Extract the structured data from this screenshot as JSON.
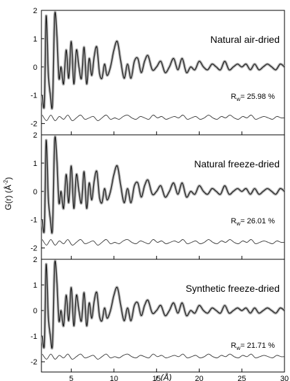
{
  "chart_data": [
    {
      "type": "line",
      "label": "Natural air-dried",
      "rw_label": "R",
      "rw_sub": "w",
      "rw_value": "= 25.98 %",
      "xlim": [
        1.5,
        30
      ],
      "ylim": [
        -2.4,
        2.0
      ],
      "yticks": [
        "-2",
        "-1",
        "0",
        "1",
        "2"
      ],
      "diff_offset": -1.8,
      "series": [
        {
          "x": [
            1.6,
            1.85,
            2.05,
            2.3,
            2.55,
            2.8,
            3.05,
            3.3,
            3.55,
            3.8,
            4.1,
            4.4,
            4.7,
            5.0,
            5.3,
            5.6,
            5.9,
            6.2,
            6.5,
            6.8,
            7.1,
            7.4,
            7.7,
            8.0,
            8.3,
            8.6,
            8.9,
            9.2,
            9.6,
            10.0,
            10.4,
            10.8,
            11.2,
            11.6,
            12.0,
            12.4,
            12.8,
            13.2,
            13.6,
            14.0,
            14.5,
            15.0,
            15.5,
            16.0,
            16.5,
            17.0,
            17.5,
            18.0,
            18.5,
            19.0,
            19.5,
            20.0,
            20.5,
            21.0,
            21.5,
            22.0,
            22.5,
            23.0,
            23.5,
            24.0,
            24.5,
            25.0,
            25.5,
            26.0,
            26.5,
            27.0,
            27.5,
            28.0,
            28.5,
            29.0,
            29.5,
            30.0
          ],
          "y": [
            -1.0,
            -1.3,
            1.8,
            -0.2,
            -1.0,
            -1.3,
            1.8,
            1.2,
            -0.4,
            0.0,
            -0.6,
            0.6,
            -0.4,
            0.9,
            -0.6,
            0.6,
            0.0,
            -0.4,
            0.7,
            -0.6,
            0.3,
            -0.3,
            0.4,
            0.7,
            -0.2,
            -0.4,
            0.1,
            -0.3,
            0.0,
            0.6,
            0.9,
            0.2,
            -0.4,
            0.1,
            -0.4,
            0.2,
            0.3,
            -0.2,
            0.2,
            0.4,
            -0.1,
            0.0,
            0.2,
            -0.2,
            0.0,
            0.3,
            -0.1,
            0.3,
            -0.2,
            0.0,
            -0.1,
            0.2,
            0.0,
            -0.1,
            0.1,
            0.0,
            -0.1,
            0.2,
            -0.1,
            0.0,
            0.1,
            0.0,
            0.1,
            -0.1,
            0.1,
            -0.1,
            0.0,
            0.1,
            0.0,
            -0.1,
            0.1,
            0.0
          ]
        },
        {
          "x": [
            1.6,
            2.1,
            2.6,
            3.1,
            3.6,
            4.1,
            4.6,
            5.1,
            5.6,
            6.1,
            6.6,
            7.1,
            7.6,
            8.1,
            8.6,
            9.1,
            9.6,
            10.1,
            10.6,
            11.1,
            11.6,
            12.1,
            12.6,
            13.1,
            13.6,
            14.1,
            14.6,
            15.1,
            15.6,
            16.1,
            16.6,
            17.1,
            17.6,
            18.1,
            18.6,
            19.1,
            19.6,
            20.1,
            20.6,
            21.1,
            21.6,
            22.1,
            22.6,
            23.1,
            23.6,
            24.1,
            24.6,
            25.1,
            25.6,
            26.1,
            26.6,
            27.1,
            27.6,
            28.1,
            28.6,
            29.1,
            29.6,
            30.0
          ],
          "y": [
            -1.7,
            -1.9,
            -1.7,
            -1.9,
            -1.75,
            -1.85,
            -1.7,
            -1.9,
            -1.8,
            -1.7,
            -1.85,
            -1.8,
            -1.75,
            -1.9,
            -1.8,
            -1.7,
            -1.85,
            -1.8,
            -1.85,
            -1.75,
            -1.7,
            -1.8,
            -1.85,
            -1.75,
            -1.8,
            -1.85,
            -1.7,
            -1.8,
            -1.75,
            -1.85,
            -1.8,
            -1.75,
            -1.8,
            -1.7,
            -1.85,
            -1.8,
            -1.75,
            -1.85,
            -1.8,
            -1.7,
            -1.8,
            -1.85,
            -1.75,
            -1.8,
            -1.7,
            -1.8,
            -1.85,
            -1.75,
            -1.8,
            -1.7,
            -1.85,
            -1.8,
            -1.75,
            -1.8,
            -1.85,
            -1.75,
            -1.8,
            -1.8
          ]
        }
      ]
    },
    {
      "type": "line",
      "label": "Natural freeze-dried",
      "rw_label": "R",
      "rw_sub": "w",
      "rw_value": "= 26.01 %",
      "xlim": [
        1.5,
        30
      ],
      "ylim": [
        -2.4,
        2.0
      ],
      "yticks": [
        "-2",
        "-1",
        "0",
        "1",
        "2"
      ],
      "diff_offset": -1.8,
      "series": [
        {
          "x": [
            1.6,
            1.85,
            2.05,
            2.3,
            2.55,
            2.8,
            3.05,
            3.3,
            3.55,
            3.8,
            4.1,
            4.4,
            4.7,
            5.0,
            5.3,
            5.6,
            5.9,
            6.2,
            6.5,
            6.8,
            7.1,
            7.4,
            7.7,
            8.0,
            8.3,
            8.6,
            8.9,
            9.2,
            9.6,
            10.0,
            10.4,
            10.8,
            11.2,
            11.6,
            12.0,
            12.4,
            12.8,
            13.2,
            13.6,
            14.0,
            14.5,
            15.0,
            15.5,
            16.0,
            16.5,
            17.0,
            17.5,
            18.0,
            18.5,
            19.0,
            19.5,
            20.0,
            20.5,
            21.0,
            21.5,
            22.0,
            22.5,
            23.0,
            23.5,
            24.0,
            24.5,
            25.0,
            25.5,
            26.0,
            26.5,
            27.0,
            27.5,
            28.0,
            28.5,
            29.0,
            29.5,
            30.0
          ],
          "y": [
            -1.0,
            -1.3,
            1.8,
            -0.2,
            -1.0,
            -1.3,
            1.8,
            1.2,
            -0.4,
            0.0,
            -0.6,
            0.6,
            -0.4,
            0.9,
            -0.6,
            0.6,
            0.0,
            -0.4,
            0.7,
            -0.6,
            0.3,
            -0.3,
            0.4,
            0.7,
            -0.2,
            -0.4,
            0.1,
            -0.3,
            0.0,
            0.6,
            0.9,
            0.2,
            -0.4,
            0.1,
            -0.4,
            0.2,
            0.3,
            -0.2,
            0.2,
            0.4,
            -0.1,
            0.0,
            0.2,
            -0.2,
            0.0,
            0.3,
            -0.1,
            0.3,
            -0.2,
            0.0,
            -0.1,
            0.2,
            0.0,
            -0.1,
            0.1,
            0.0,
            -0.1,
            0.2,
            -0.1,
            0.0,
            0.1,
            0.0,
            0.1,
            -0.1,
            0.1,
            -0.1,
            0.0,
            0.1,
            0.0,
            -0.1,
            0.1,
            0.0
          ]
        },
        {
          "x": [
            1.6,
            2.1,
            2.6,
            3.1,
            3.6,
            4.1,
            4.6,
            5.1,
            5.6,
            6.1,
            6.6,
            7.1,
            7.6,
            8.1,
            8.6,
            9.1,
            9.6,
            10.1,
            10.6,
            11.1,
            11.6,
            12.1,
            12.6,
            13.1,
            13.6,
            14.1,
            14.6,
            15.1,
            15.6,
            16.1,
            16.6,
            17.1,
            17.6,
            18.1,
            18.6,
            19.1,
            19.6,
            20.1,
            20.6,
            21.1,
            21.6,
            22.1,
            22.6,
            23.1,
            23.6,
            24.1,
            24.6,
            25.1,
            25.6,
            26.1,
            26.6,
            27.1,
            27.6,
            28.1,
            28.6,
            29.1,
            29.6,
            30.0
          ],
          "y": [
            -1.7,
            -1.9,
            -1.7,
            -1.9,
            -1.75,
            -1.85,
            -1.7,
            -1.9,
            -1.8,
            -1.7,
            -1.85,
            -1.8,
            -1.75,
            -1.9,
            -1.8,
            -1.7,
            -1.85,
            -1.8,
            -1.85,
            -1.75,
            -1.7,
            -1.8,
            -1.85,
            -1.75,
            -1.8,
            -1.85,
            -1.7,
            -1.8,
            -1.75,
            -1.85,
            -1.8,
            -1.75,
            -1.8,
            -1.7,
            -1.85,
            -1.8,
            -1.75,
            -1.85,
            -1.8,
            -1.7,
            -1.8,
            -1.85,
            -1.75,
            -1.8,
            -1.7,
            -1.8,
            -1.85,
            -1.75,
            -1.8,
            -1.7,
            -1.85,
            -1.8,
            -1.75,
            -1.8,
            -1.85,
            -1.75,
            -1.8,
            -1.8
          ]
        }
      ]
    },
    {
      "type": "line",
      "label": "Synthetic freeze-dried",
      "rw_label": "R",
      "rw_sub": "w",
      "rw_value": "= 21.71 %",
      "xlim": [
        1.5,
        30
      ],
      "ylim": [
        -2.4,
        2.0
      ],
      "yticks": [
        "-2",
        "-1",
        "0",
        "1",
        "2"
      ],
      "xticks": [
        "5",
        "10",
        "15",
        "20",
        "25",
        "30"
      ],
      "diff_offset": -1.8,
      "series": [
        {
          "x": [
            1.6,
            1.85,
            2.05,
            2.3,
            2.55,
            2.8,
            3.05,
            3.3,
            3.55,
            3.8,
            4.1,
            4.4,
            4.7,
            5.0,
            5.3,
            5.6,
            5.9,
            6.2,
            6.5,
            6.8,
            7.1,
            7.4,
            7.7,
            8.0,
            8.3,
            8.6,
            8.9,
            9.2,
            9.6,
            10.0,
            10.4,
            10.8,
            11.2,
            11.6,
            12.0,
            12.4,
            12.8,
            13.2,
            13.6,
            14.0,
            14.5,
            15.0,
            15.5,
            16.0,
            16.5,
            17.0,
            17.5,
            18.0,
            18.5,
            19.0,
            19.5,
            20.0,
            20.5,
            21.0,
            21.5,
            22.0,
            22.5,
            23.0,
            23.5,
            24.0,
            24.5,
            25.0,
            25.5,
            26.0,
            26.5,
            27.0,
            27.5,
            28.0,
            28.5,
            29.0,
            29.5,
            30.0
          ],
          "y": [
            -1.0,
            -1.3,
            1.8,
            -0.2,
            -1.0,
            -1.3,
            1.8,
            1.2,
            -0.4,
            0.0,
            -0.6,
            0.6,
            -0.4,
            0.9,
            -0.6,
            0.6,
            0.0,
            -0.4,
            0.7,
            -0.6,
            0.3,
            -0.3,
            0.4,
            0.7,
            -0.2,
            -0.4,
            0.1,
            -0.3,
            0.0,
            0.6,
            0.9,
            0.2,
            -0.4,
            0.1,
            -0.4,
            0.2,
            0.3,
            -0.2,
            0.2,
            0.4,
            -0.1,
            0.0,
            0.2,
            -0.2,
            0.0,
            0.3,
            -0.1,
            0.3,
            -0.2,
            0.0,
            -0.1,
            0.2,
            0.0,
            -0.1,
            0.1,
            0.0,
            -0.1,
            0.2,
            -0.1,
            0.0,
            0.1,
            0.0,
            0.1,
            -0.1,
            0.1,
            -0.1,
            0.0,
            0.1,
            0.0,
            -0.1,
            0.1,
            0.0
          ]
        },
        {
          "x": [
            1.6,
            2.1,
            2.6,
            3.1,
            3.6,
            4.1,
            4.6,
            5.1,
            5.6,
            6.1,
            6.6,
            7.1,
            7.6,
            8.1,
            8.6,
            9.1,
            9.6,
            10.1,
            10.6,
            11.1,
            11.6,
            12.1,
            12.6,
            13.1,
            13.6,
            14.1,
            14.6,
            15.1,
            15.6,
            16.1,
            16.6,
            17.1,
            17.6,
            18.1,
            18.6,
            19.1,
            19.6,
            20.1,
            20.6,
            21.1,
            21.6,
            22.1,
            22.6,
            23.1,
            23.6,
            24.1,
            24.6,
            25.1,
            25.6,
            26.1,
            26.6,
            27.1,
            27.6,
            28.1,
            28.6,
            29.1,
            29.6,
            30.0
          ],
          "y": [
            -1.7,
            -1.9,
            -1.7,
            -1.9,
            -1.75,
            -1.85,
            -1.7,
            -1.9,
            -1.8,
            -1.7,
            -1.85,
            -1.8,
            -1.75,
            -1.9,
            -1.8,
            -1.7,
            -1.85,
            -1.8,
            -1.85,
            -1.75,
            -1.7,
            -1.8,
            -1.85,
            -1.75,
            -1.8,
            -1.85,
            -1.7,
            -1.8,
            -1.75,
            -1.85,
            -1.8,
            -1.75,
            -1.8,
            -1.7,
            -1.85,
            -1.8,
            -1.75,
            -1.85,
            -1.8,
            -1.7,
            -1.8,
            -1.85,
            -1.75,
            -1.8,
            -1.7,
            -1.8,
            -1.85,
            -1.75,
            -1.8,
            -1.7,
            -1.85,
            -1.8,
            -1.75,
            -1.8,
            -1.85,
            -1.75,
            -1.8,
            -1.8
          ]
        }
      ]
    }
  ],
  "axes": {
    "ylabel": "G(r) (Å",
    "ylabel_sup": "-2",
    "ylabel_end": ")",
    "xlabel": "r (Å)"
  },
  "colors": {
    "data_marker": "#b8b8b8",
    "fit_line": "#1a1a1a",
    "diff_line": "#333333",
    "axis": "#000000"
  }
}
